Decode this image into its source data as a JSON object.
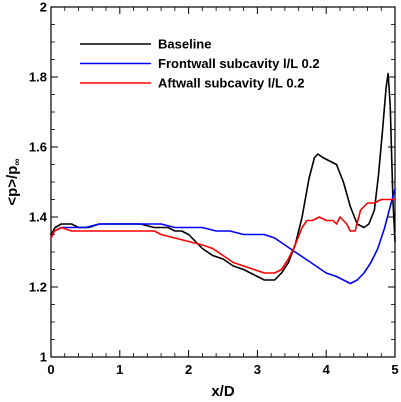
{
  "chart_data": {
    "type": "line",
    "xlabel": "x/D",
    "ylabel_main": "<p>/p",
    "ylabel_sub": "∞",
    "xlim": [
      0,
      5
    ],
    "ylim": [
      1,
      2
    ],
    "x_ticks": [
      0,
      1,
      2,
      3,
      4,
      5
    ],
    "y_ticks": [
      1,
      1.2,
      1.4,
      1.6,
      1.8,
      2
    ],
    "x_tick_labels": [
      "0",
      "1",
      "2",
      "3",
      "4",
      "5"
    ],
    "y_tick_labels": [
      "1",
      "1.2",
      "1.4",
      "1.6",
      "1.8",
      "2"
    ],
    "grid": false,
    "legend_position": "top-left",
    "series": [
      {
        "name": "Baseline",
        "color": "#000000",
        "points": [
          [
            0,
            1.35
          ],
          [
            0.06,
            1.37
          ],
          [
            0.15,
            1.38
          ],
          [
            0.3,
            1.38
          ],
          [
            0.4,
            1.37
          ],
          [
            0.55,
            1.37
          ],
          [
            0.7,
            1.38
          ],
          [
            1.0,
            1.38
          ],
          [
            1.3,
            1.38
          ],
          [
            1.5,
            1.37
          ],
          [
            1.7,
            1.37
          ],
          [
            1.8,
            1.36
          ],
          [
            1.9,
            1.36
          ],
          [
            2.0,
            1.35
          ],
          [
            2.1,
            1.33
          ],
          [
            2.2,
            1.31
          ],
          [
            2.35,
            1.29
          ],
          [
            2.5,
            1.28
          ],
          [
            2.65,
            1.26
          ],
          [
            2.8,
            1.25
          ],
          [
            2.9,
            1.24
          ],
          [
            3.0,
            1.23
          ],
          [
            3.1,
            1.22
          ],
          [
            3.25,
            1.22
          ],
          [
            3.35,
            1.24
          ],
          [
            3.45,
            1.27
          ],
          [
            3.55,
            1.32
          ],
          [
            3.65,
            1.4
          ],
          [
            3.75,
            1.51
          ],
          [
            3.83,
            1.57
          ],
          [
            3.88,
            1.58
          ],
          [
            3.95,
            1.57
          ],
          [
            4.05,
            1.56
          ],
          [
            4.15,
            1.55
          ],
          [
            4.25,
            1.5
          ],
          [
            4.35,
            1.43
          ],
          [
            4.45,
            1.38
          ],
          [
            4.55,
            1.37
          ],
          [
            4.62,
            1.38
          ],
          [
            4.7,
            1.42
          ],
          [
            4.76,
            1.52
          ],
          [
            4.82,
            1.65
          ],
          [
            4.87,
            1.77
          ],
          [
            4.9,
            1.81
          ],
          [
            4.93,
            1.72
          ],
          [
            4.97,
            1.45
          ],
          [
            5.0,
            1.33
          ]
        ]
      },
      {
        "name": "Frontwall subcavity l/L 0.2",
        "color": "#0000ff",
        "points": [
          [
            0,
            1.34
          ],
          [
            0.05,
            1.36
          ],
          [
            0.15,
            1.37
          ],
          [
            0.3,
            1.37
          ],
          [
            0.5,
            1.37
          ],
          [
            0.7,
            1.38
          ],
          [
            1.0,
            1.38
          ],
          [
            1.3,
            1.38
          ],
          [
            1.6,
            1.38
          ],
          [
            1.8,
            1.37
          ],
          [
            2.0,
            1.37
          ],
          [
            2.2,
            1.37
          ],
          [
            2.4,
            1.36
          ],
          [
            2.6,
            1.36
          ],
          [
            2.8,
            1.35
          ],
          [
            3.0,
            1.35
          ],
          [
            3.1,
            1.35
          ],
          [
            3.25,
            1.34
          ],
          [
            3.4,
            1.32
          ],
          [
            3.55,
            1.3
          ],
          [
            3.7,
            1.28
          ],
          [
            3.85,
            1.26
          ],
          [
            4.0,
            1.24
          ],
          [
            4.15,
            1.23
          ],
          [
            4.25,
            1.22
          ],
          [
            4.35,
            1.21
          ],
          [
            4.45,
            1.22
          ],
          [
            4.55,
            1.24
          ],
          [
            4.65,
            1.27
          ],
          [
            4.75,
            1.31
          ],
          [
            4.85,
            1.37
          ],
          [
            4.93,
            1.43
          ],
          [
            5.0,
            1.48
          ]
        ]
      },
      {
        "name": "Aftwall subcavity l/L 0.2",
        "color": "#ff0000",
        "points": [
          [
            0,
            1.34
          ],
          [
            0.05,
            1.36
          ],
          [
            0.15,
            1.37
          ],
          [
            0.3,
            1.36
          ],
          [
            0.5,
            1.36
          ],
          [
            0.8,
            1.36
          ],
          [
            1.0,
            1.36
          ],
          [
            1.3,
            1.36
          ],
          [
            1.5,
            1.36
          ],
          [
            1.6,
            1.35
          ],
          [
            1.8,
            1.34
          ],
          [
            2.0,
            1.33
          ],
          [
            2.2,
            1.32
          ],
          [
            2.35,
            1.31
          ],
          [
            2.5,
            1.29
          ],
          [
            2.65,
            1.27
          ],
          [
            2.8,
            1.26
          ],
          [
            2.95,
            1.25
          ],
          [
            3.1,
            1.24
          ],
          [
            3.25,
            1.24
          ],
          [
            3.35,
            1.25
          ],
          [
            3.45,
            1.28
          ],
          [
            3.55,
            1.32
          ],
          [
            3.65,
            1.37
          ],
          [
            3.72,
            1.39
          ],
          [
            3.8,
            1.39
          ],
          [
            3.9,
            1.4
          ],
          [
            4.0,
            1.39
          ],
          [
            4.1,
            1.39
          ],
          [
            4.15,
            1.38
          ],
          [
            4.2,
            1.4
          ],
          [
            4.3,
            1.38
          ],
          [
            4.35,
            1.36
          ],
          [
            4.42,
            1.36
          ],
          [
            4.5,
            1.42
          ],
          [
            4.6,
            1.44
          ],
          [
            4.7,
            1.44
          ],
          [
            4.8,
            1.45
          ],
          [
            4.9,
            1.45
          ],
          [
            5.0,
            1.45
          ]
        ]
      }
    ]
  }
}
